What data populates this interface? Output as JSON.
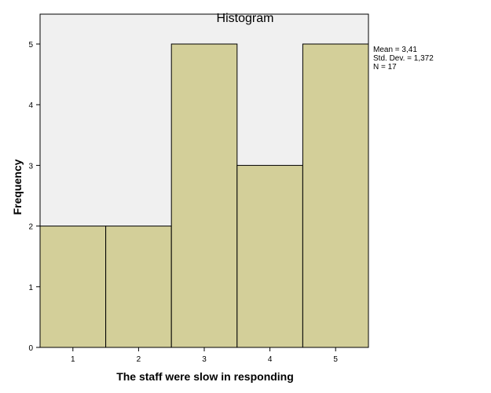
{
  "chart_data": {
    "type": "bar",
    "title": "Histogram",
    "xlabel": "The staff were slow in responding",
    "ylabel": "Frequency",
    "categories": [
      "1",
      "2",
      "3",
      "4",
      "5"
    ],
    "values": [
      2,
      2,
      5,
      3,
      5
    ],
    "yticks": [
      "0",
      "1",
      "2",
      "3",
      "4",
      "5"
    ],
    "ylim": [
      0,
      5
    ],
    "xlim": [
      0.5,
      5.5
    ],
    "grid": false,
    "legend": "none",
    "stats": [
      "Mean = 3,41",
      "Std. Dev. = 1,372",
      "N = 17"
    ],
    "bar_color": "#d3cf99",
    "plot_background": "#f0f0f0"
  }
}
